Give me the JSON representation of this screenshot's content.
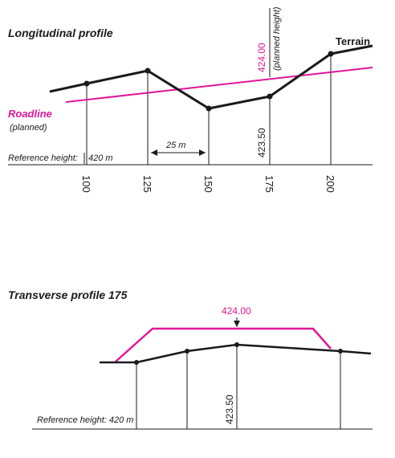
{
  "colors": {
    "terrain": "#1a1a1a",
    "planned": "#e0169a"
  },
  "longitudinal": {
    "title": "Longitudinal profile",
    "terrain_label": "Terrain",
    "roadline_label": "Roadline",
    "roadline_sub": "(planned)",
    "reference_label": "Reference height:",
    "reference_value": "420 m",
    "interval_label": "25 m",
    "planned_height_value": "424.00",
    "planned_height_note": "(planned height)",
    "terrain_height_value": "423.50",
    "stations": [
      "100",
      "125",
      "150",
      "175",
      "200"
    ]
  },
  "transverse": {
    "title": "Transverse profile 175",
    "planned_height_value": "424.00",
    "terrain_height_value": "423.50",
    "reference_label": "Reference height: 420 m"
  }
}
